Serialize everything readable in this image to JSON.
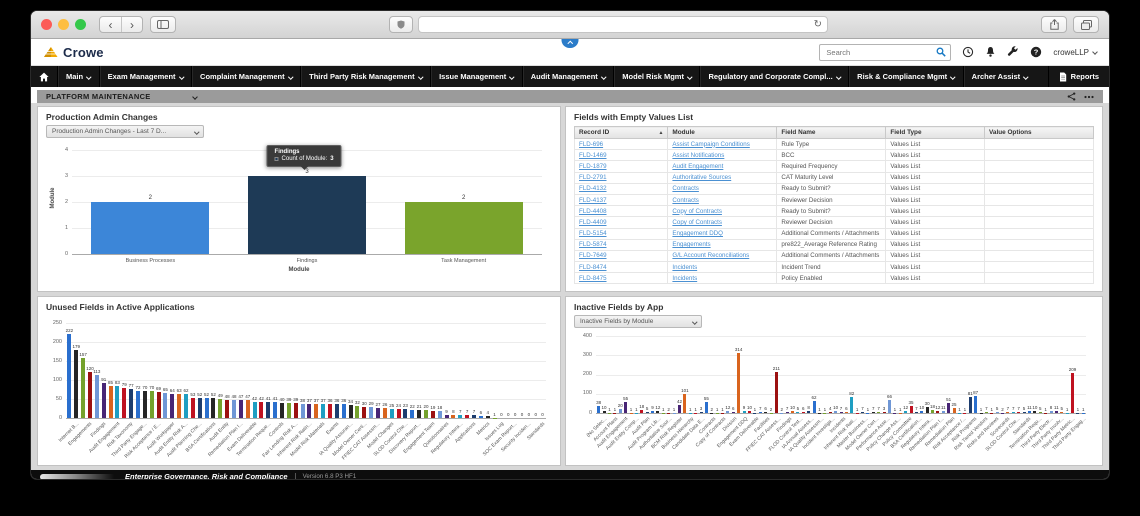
{
  "header": {
    "logo": "Crowe",
    "search_placeholder": "Search",
    "user": "croweLLP"
  },
  "nav": {
    "items": [
      "Main",
      "Exam Management",
      "Complaint Management",
      "Third Party Risk Management",
      "Issue Management",
      "Audit Management",
      "Model Risk Mgmt",
      "Regulatory and Corporate Compl...",
      "Risk & Compliance Mgmt",
      "Archer Assist"
    ],
    "reports": "Reports"
  },
  "workspace": {
    "title": "PLATFORM MAINTENANCE"
  },
  "panels": {
    "production_admin_changes": {
      "title": "Production Admin Changes",
      "filter": "Production Admin Changes - Last 7 D...",
      "tooltip": {
        "title": "Findings",
        "label": "Count of Module:",
        "value": "3"
      }
    },
    "fields_with_empty_values": {
      "title": "Fields with Empty Values List",
      "columns": [
        "Record ID",
        "Module",
        "Field Name",
        "Field Type",
        "Value Options"
      ],
      "rows": [
        {
          "record_id": "FLD-696",
          "module": "Assist Campaign Conditions",
          "field_name": "Rule Type",
          "field_type": "Values List",
          "value_options": ""
        },
        {
          "record_id": "FLD-1469",
          "module": "Assist Notifications",
          "field_name": "BCC",
          "field_type": "Values List",
          "value_options": ""
        },
        {
          "record_id": "FLD-1879",
          "module": "Audit Engagement",
          "field_name": "Required Frequency",
          "field_type": "Values List",
          "value_options": ""
        },
        {
          "record_id": "FLD-2791",
          "module": "Authoritative Sources",
          "field_name": "CAT Maturity Level",
          "field_type": "Values List",
          "value_options": ""
        },
        {
          "record_id": "FLD-4132",
          "module": "Contracts",
          "field_name": "Ready to Submit?",
          "field_type": "Values List",
          "value_options": ""
        },
        {
          "record_id": "FLD-4137",
          "module": "Contracts",
          "field_name": "Reviewer Decision",
          "field_type": "Values List",
          "value_options": ""
        },
        {
          "record_id": "FLD-4408",
          "module": "Copy of Contracts",
          "field_name": "Ready to Submit?",
          "field_type": "Values List",
          "value_options": ""
        },
        {
          "record_id": "FLD-4409",
          "module": "Copy of Contracts",
          "field_name": "Reviewer Decision",
          "field_type": "Values List",
          "value_options": ""
        },
        {
          "record_id": "FLD-5154",
          "module": "Engagement DDQ",
          "field_name": "Additional Comments / Attachments",
          "field_type": "Values List",
          "value_options": ""
        },
        {
          "record_id": "FLD-5874",
          "module": "Engagements",
          "field_name": "pre822_Average Reference Rating",
          "field_type": "Values List",
          "value_options": ""
        },
        {
          "record_id": "FLD-7649",
          "module": "G/L Account Reconciliations",
          "field_name": "Additional Comments / Attachments",
          "field_type": "Values List",
          "value_options": ""
        },
        {
          "record_id": "FLD-8474",
          "module": "Incidents",
          "field_name": "Incident Trend",
          "field_type": "Values List",
          "value_options": ""
        },
        {
          "record_id": "FLD-8475",
          "module": "Incidents",
          "field_name": "Policy Enabled",
          "field_type": "Values List",
          "value_options": ""
        }
      ]
    },
    "unused_fields": {
      "title": "Unused Fields in Active Applications"
    },
    "inactive_fields": {
      "title": "Inactive Fields by App",
      "filter": "Inactive Fields by Module"
    }
  },
  "chart_data": [
    {
      "id": "chart1",
      "type": "bar",
      "title": "Production Admin Changes",
      "categories": [
        "Business Processes",
        "Findings",
        "Task Management"
      ],
      "values": [
        2,
        3,
        2
      ],
      "colors": [
        "#3c86d8",
        "#1e3a56",
        "#7aa42c"
      ],
      "xlabel": "Module",
      "ylabel": "Module",
      "ylim": [
        0,
        4
      ],
      "yticks": [
        0,
        1,
        2,
        3,
        4
      ],
      "grid": true,
      "legend": "none",
      "tooltip": {
        "category": "Findings",
        "text": "Count of Module: 3"
      }
    },
    {
      "id": "chart3",
      "type": "bar",
      "title": "Unused Fields in Active Applications",
      "ylim": [
        0,
        250
      ],
      "yticks": [
        0,
        50,
        100,
        150,
        200,
        250
      ],
      "grid": true,
      "legend": "none",
      "values": [
        222,
        179,
        157,
        120,
        113,
        91,
        85,
        83,
        79,
        77,
        72,
        70,
        70,
        69,
        65,
        64,
        63,
        62,
        53,
        52,
        52,
        52,
        49,
        48,
        48,
        47,
        47,
        42,
        42,
        41,
        41,
        40,
        39,
        39,
        38,
        37,
        37,
        37,
        36,
        36,
        36,
        34,
        32,
        30,
        29,
        27,
        26,
        25,
        24,
        23,
        22,
        21,
        20,
        19,
        18,
        9,
        8,
        7,
        7,
        7,
        6,
        4,
        1,
        0,
        0,
        0,
        0,
        0,
        0,
        0
      ],
      "categories": [
        "Internet B...",
        "Engagements",
        "Findings",
        "Audit Engagement",
        "Risk Taxonomy",
        "Third Party Engage...",
        "Risk Acceptance / E...",
        "Audit Workpaper",
        "Audit Entity Risk A...",
        "Audit Planning Che...",
        "BSA Certifications",
        "Audit Entity",
        "Remediation Plan I...",
        "Exam Deliverable",
        "Termination Reque...",
        "Controls",
        "Fair Lending Risk A...",
        "Inherent Risk Ratin...",
        "Model Risk Materials",
        "Exams",
        "IA Quality Assuran...",
        "Model Owner Certi...",
        "FFIEC CAT Assessm...",
        "Model Changes",
        "SLOD Control Che...",
        "Discovery Report...",
        "Engagement Team",
        "Questionnaires",
        "Regulatory Intera...",
        "Applications",
        "Metrics",
        "Issues Log",
        "SOC Exam Report...",
        "Security Inciden...",
        "Standards"
      ],
      "palette": [
        "#2a6fce",
        "#252525",
        "#74a12c",
        "#9c1111",
        "#6f97d6",
        "#482575",
        "#d9641e",
        "#1e9ec2",
        "#bf1220",
        "#1d3d6e"
      ]
    },
    {
      "id": "chart4",
      "type": "bar",
      "title": "Inactive Fields by App",
      "ylim": [
        0,
        400
      ],
      "yticks": [
        0,
        100,
        200,
        300,
        400
      ],
      "grid": true,
      "legend": "none",
      "values": [
        38,
        10,
        1,
        1,
        20,
        55,
        1,
        1,
        18,
        5,
        9,
        12,
        1,
        2,
        1,
        42,
        101,
        1,
        1,
        3,
        55,
        2,
        1,
        1,
        12,
        6,
        314,
        9,
        10,
        1,
        7,
        6,
        2,
        211,
        2,
        7,
        10,
        5,
        6,
        8,
        62,
        1,
        1,
        4,
        10,
        7,
        6,
        82,
        1,
        7,
        1,
        7,
        7,
        3,
        66,
        1,
        1,
        12,
        35,
        7,
        10,
        30,
        18,
        12,
        11,
        51,
        25,
        1,
        1,
        81,
        87,
        1,
        7,
        1,
        5,
        2,
        7,
        7,
        7,
        5,
        11,
        10,
        5,
        1,
        8,
        11,
        5,
        1,
        209,
        1,
        1
      ],
      "categories": [
        "(No Selec...",
        "Account Plans",
        "Audit Engagement",
        "Audit Entity Comp...",
        "Audit Plan",
        "Audit Program Lib...",
        "Authoritative Sour...",
        "BCM Risk Register",
        "Business Hierarchy",
        "Candidate Data E...",
        "Contracts",
        "Copy of Contracts",
        "Division",
        "Engagement DDQ",
        "Exam Deliverable",
        "Facilities",
        "FFIEC CAT Assess...",
        "Findings",
        "FLOD Control Test...",
        "IA Annual Assess...",
        "IA Quality Assessm...",
        "Incident Investiga...",
        "Incidents",
        "Inherent Risk Rati...",
        "Master Business...",
        "Model Owner Cert...",
        "Performance Asse...",
        "Policy Change Ass...",
        "Policy Committee",
        "BSA Certification...",
        "Regulatory Intera...",
        "Remediation Plan I...",
        "Remediation Plan",
        "Risk Acceptance /...",
        "Risk Programs",
        "Risk Tiered Vendors",
        "Risks and Reviews",
        "Scorecards",
        "SLOD Control Che...",
        "Standards",
        "Termination Requ...",
        "Third Party Electr...",
        "Third Party Involv...",
        "Third Party Metric...",
        "Third Party Engag..."
      ],
      "palette": [
        "#2a6fce",
        "#252525",
        "#74a12c",
        "#9c1111",
        "#6f97d6",
        "#482575",
        "#d9641e",
        "#1e9ec2",
        "#bf1220",
        "#1d3d6e"
      ]
    }
  ],
  "footer": {
    "brand": "Enterprise Governance, Risk and Compliance",
    "version": "Version 6.8 P3 HF1"
  }
}
